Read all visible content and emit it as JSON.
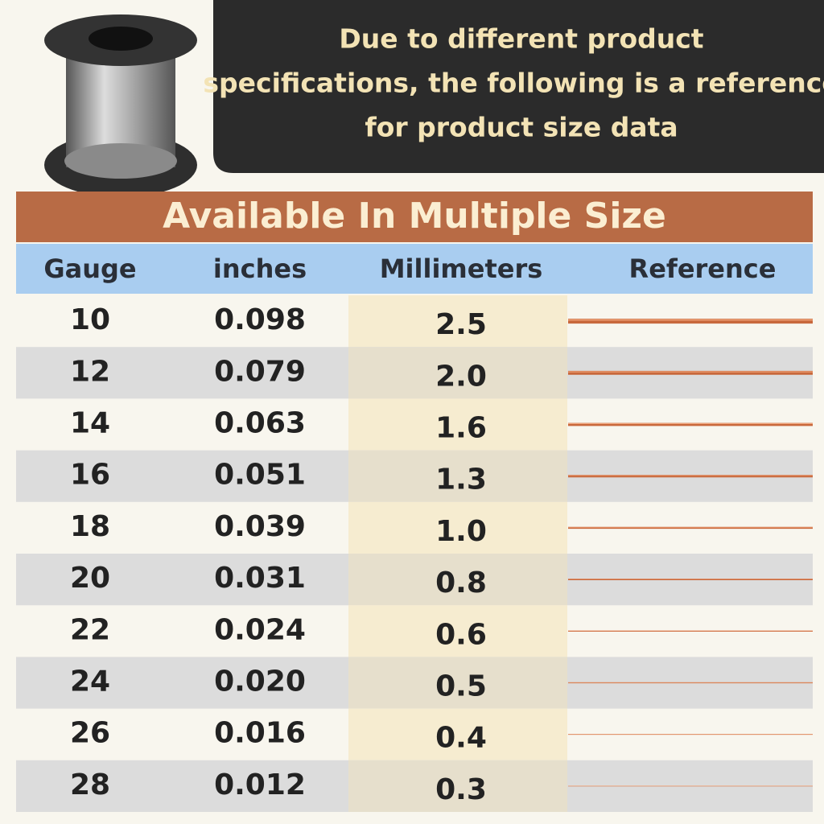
{
  "header": {
    "notice": [
      "Due to different product",
      "specifications, the following is a reference",
      "for product size data"
    ]
  },
  "table": {
    "title": "Available In Multiple Size",
    "columns": [
      "Gauge",
      "inches",
      "Millimeters",
      "Reference"
    ],
    "rows": [
      [
        "10",
        "0.098",
        "2.5"
      ],
      [
        "12",
        "0.079",
        "2.0"
      ],
      [
        "14",
        "0.063",
        "1.6"
      ],
      [
        "16",
        "0.051",
        "1.3"
      ],
      [
        "18",
        "0.039",
        "1.0"
      ],
      [
        "20",
        "0.031",
        "0.8"
      ],
      [
        "22",
        "0.024",
        "0.6"
      ],
      [
        "24",
        "0.020",
        "0.5"
      ],
      [
        "26",
        "0.016",
        "0.4"
      ],
      [
        "28",
        "0.012",
        "0.3"
      ]
    ]
  }
}
